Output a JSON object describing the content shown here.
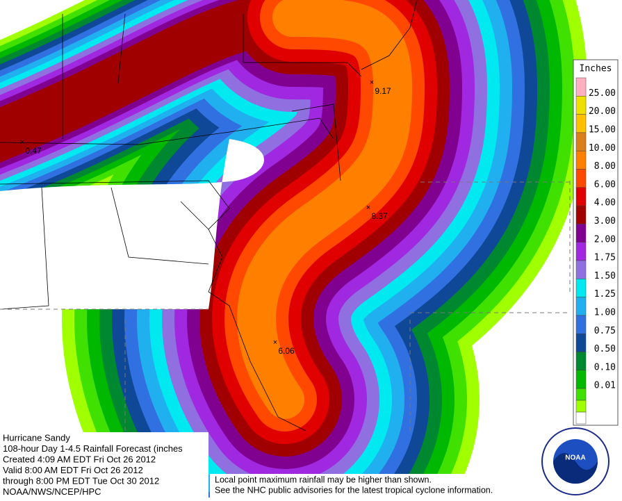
{
  "legend": {
    "title": "Inches",
    "levels": [
      {
        "label": "25.00",
        "color": "#ffb0c0"
      },
      {
        "label": "20.00",
        "color": "#f0e000"
      },
      {
        "label": "15.00",
        "color": "#ffc000"
      },
      {
        "label": "10.00",
        "color": "#d8801c"
      },
      {
        "label": "8.00",
        "color": "#ff8000"
      },
      {
        "label": "6.00",
        "color": "#ff4800"
      },
      {
        "label": "4.00",
        "color": "#e00000"
      },
      {
        "label": "3.00",
        "color": "#a00000"
      },
      {
        "label": "2.00",
        "color": "#800090"
      },
      {
        "label": "1.75",
        "color": "#a028e0"
      },
      {
        "label": "1.50",
        "color": "#9070e0"
      },
      {
        "label": "1.25",
        "color": "#00e8f0"
      },
      {
        "label": "1.00",
        "color": "#20b0f0"
      },
      {
        "label": "0.75",
        "color": "#3070e0"
      },
      {
        "label": "0.50",
        "color": "#104898"
      },
      {
        "label": "0.10",
        "color": "#008830"
      },
      {
        "label": "0.01",
        "color": "#00b800"
      }
    ],
    "below_colors": [
      "#40e000",
      "#a0ff00",
      "#ffffff"
    ]
  },
  "maxima": [
    {
      "label": "9.17"
    },
    {
      "label": "8.37"
    },
    {
      "label": "6.06"
    },
    {
      "label": "0.47"
    }
  ],
  "info": {
    "lines": [
      "Hurricane Sandy",
      "108-hour Day 1-4.5 Rainfall Forecast (inches",
      "Created 4:09 AM EDT Fri Oct 26 2012",
      "Valid 8:00 AM EDT Fri Oct 26 2012",
      "through 8:00 PM EDT Tue Oct 30 2012",
      "NOAA/NWS/NCEP/HPC"
    ]
  },
  "note": {
    "lines": [
      "Local point maximum rainfall may be higher than shown.",
      "See the NHC public advisories for the latest tropical cyclone information."
    ]
  },
  "logo": {
    "text": "NOAA"
  }
}
